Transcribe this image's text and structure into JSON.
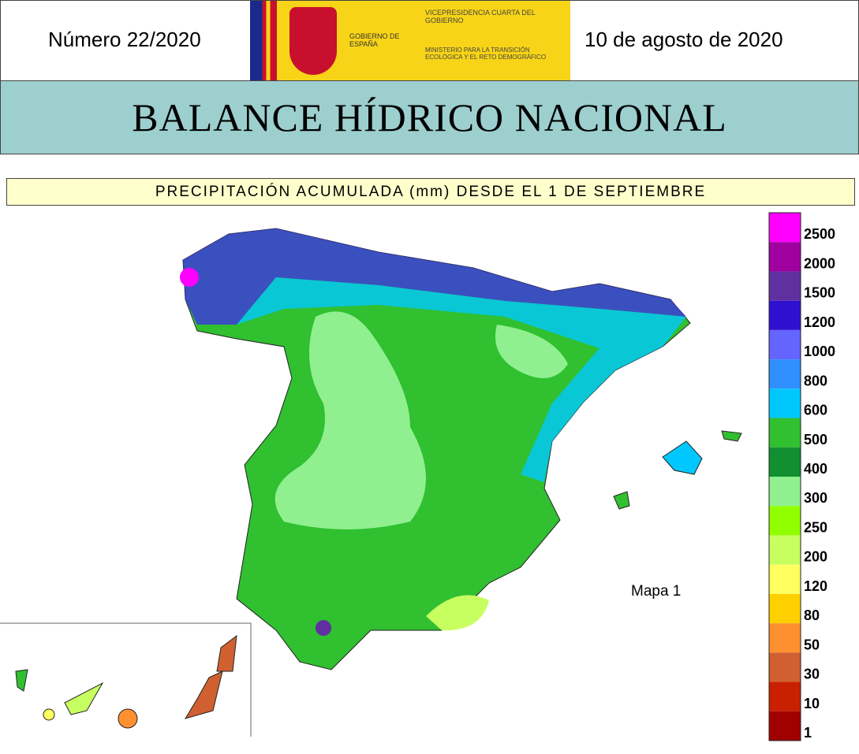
{
  "header": {
    "number": "Número 22/2020",
    "date": "10 de agosto de 2020",
    "logo": {
      "government": "GOBIERNO DE ESPAÑA",
      "vicepresidency": "VICEPRESIDENCIA CUARTA DEL GOBIERNO",
      "ministry": "MINISTERIO PARA LA TRANSICIÓN ECOLÓGICA Y EL RETO DEMOGRÁFICO"
    }
  },
  "title": "BALANCE HÍDRICO NACIONAL",
  "subtitle": "PRECIPITACIÓN ACUMULADA (mm) DESDE EL 1 DE SEPTIEMBRE",
  "map": {
    "label": "Mapa 1"
  },
  "legend": {
    "items": [
      {
        "label": 2500,
        "color": "#ff00ff"
      },
      {
        "label": 2000,
        "color": "#a000a0"
      },
      {
        "label": 1500,
        "color": "#6030a0"
      },
      {
        "label": 1200,
        "color": "#3010d0"
      },
      {
        "label": 1000,
        "color": "#6464ff"
      },
      {
        "label": 800,
        "color": "#3090ff"
      },
      {
        "label": 600,
        "color": "#00c8ff"
      },
      {
        "label": 500,
        "color": "#30c030"
      },
      {
        "label": 400,
        "color": "#109030"
      },
      {
        "label": 300,
        "color": "#90f090"
      },
      {
        "label": 250,
        "color": "#90ff00"
      },
      {
        "label": 200,
        "color": "#c8ff60"
      },
      {
        "label": 120,
        "color": "#ffff60"
      },
      {
        "label": 80,
        "color": "#ffd000"
      },
      {
        "label": 50,
        "color": "#ff9030"
      },
      {
        "label": 30,
        "color": "#d06030"
      },
      {
        "label": 10,
        "color": "#c82000"
      },
      {
        "label": 1,
        "color": "#a00000"
      }
    ]
  }
}
